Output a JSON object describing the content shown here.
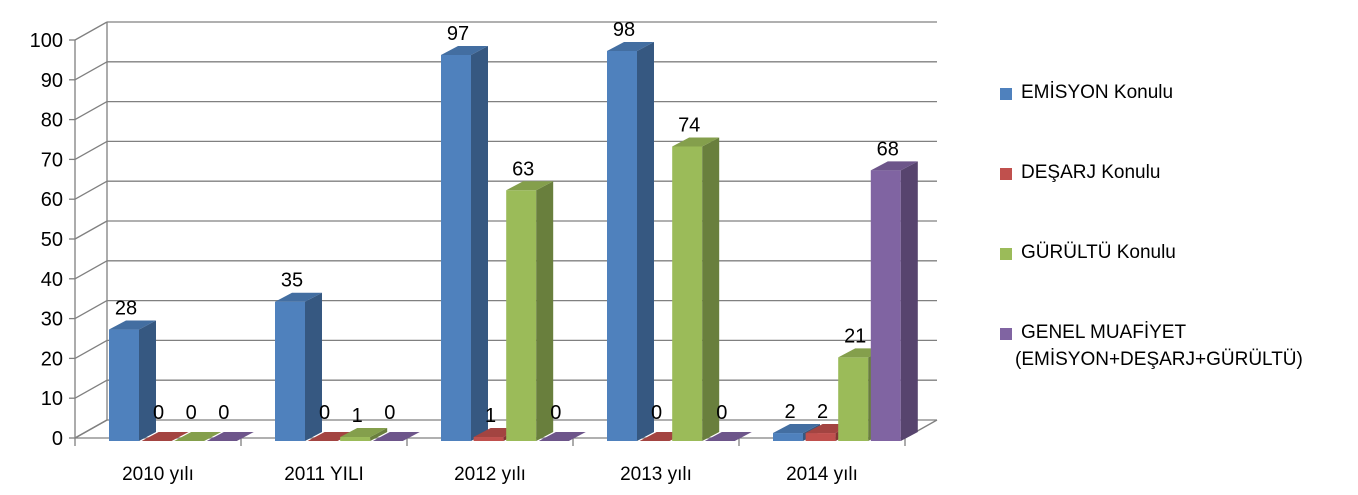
{
  "chart_data": {
    "type": "bar",
    "categories": [
      "2010 yılı",
      "2011 YILI",
      "2012 yılı",
      "2013 yılı",
      "2014 yılı"
    ],
    "series": [
      {
        "name": "EMİSYON Konulu",
        "values": [
          28,
          35,
          97,
          98,
          2
        ]
      },
      {
        "name": "DEŞARJ  Konulu",
        "values": [
          0,
          0,
          1,
          0,
          2
        ]
      },
      {
        "name": "GÜRÜLTÜ Konulu",
        "values": [
          0,
          1,
          63,
          74,
          21
        ]
      },
      {
        "name": "GENEL MUAFİYET (EMİSYON+DEŞARJ+GÜRÜLTÜ)",
        "values": [
          0,
          0,
          0,
          0,
          68
        ]
      }
    ],
    "data_labels": [
      [
        "28",
        "0",
        "0",
        "0"
      ],
      [
        "35",
        "0",
        "1",
        "0"
      ],
      [
        "97",
        "1",
        "63",
        "0"
      ],
      [
        "98",
        "0",
        "74",
        "0"
      ],
      [
        "2",
        "2",
        "21",
        "68"
      ]
    ],
    "yticks": [
      "0",
      "10",
      "20",
      "30",
      "40",
      "50",
      "60",
      "70",
      "80",
      "90",
      "100"
    ],
    "ylim": [
      0,
      100
    ],
    "grid": true,
    "legend_position": "right",
    "style": "3d-clustered-column",
    "title": "",
    "xlabel": "",
    "ylabel": ""
  },
  "legend": {
    "items": [
      {
        "lines": [
          "EMİSYON Konulu"
        ],
        "color": "#4F81BD"
      },
      {
        "lines": [
          "DEŞARJ  Konulu"
        ],
        "color": "#C0504D"
      },
      {
        "lines": [
          "GÜRÜLTÜ Konulu"
        ],
        "color": "#9BBB59"
      },
      {
        "lines": [
          "GENEL MUAFİYET",
          "(EMİSYON+DEŞARJ+GÜRÜLTÜ)"
        ],
        "color": "#8064A2"
      }
    ]
  },
  "colors": {
    "series": [
      "#4F81BD",
      "#C0504D",
      "#9BBB59",
      "#8064A2"
    ],
    "grid": "#808080"
  }
}
